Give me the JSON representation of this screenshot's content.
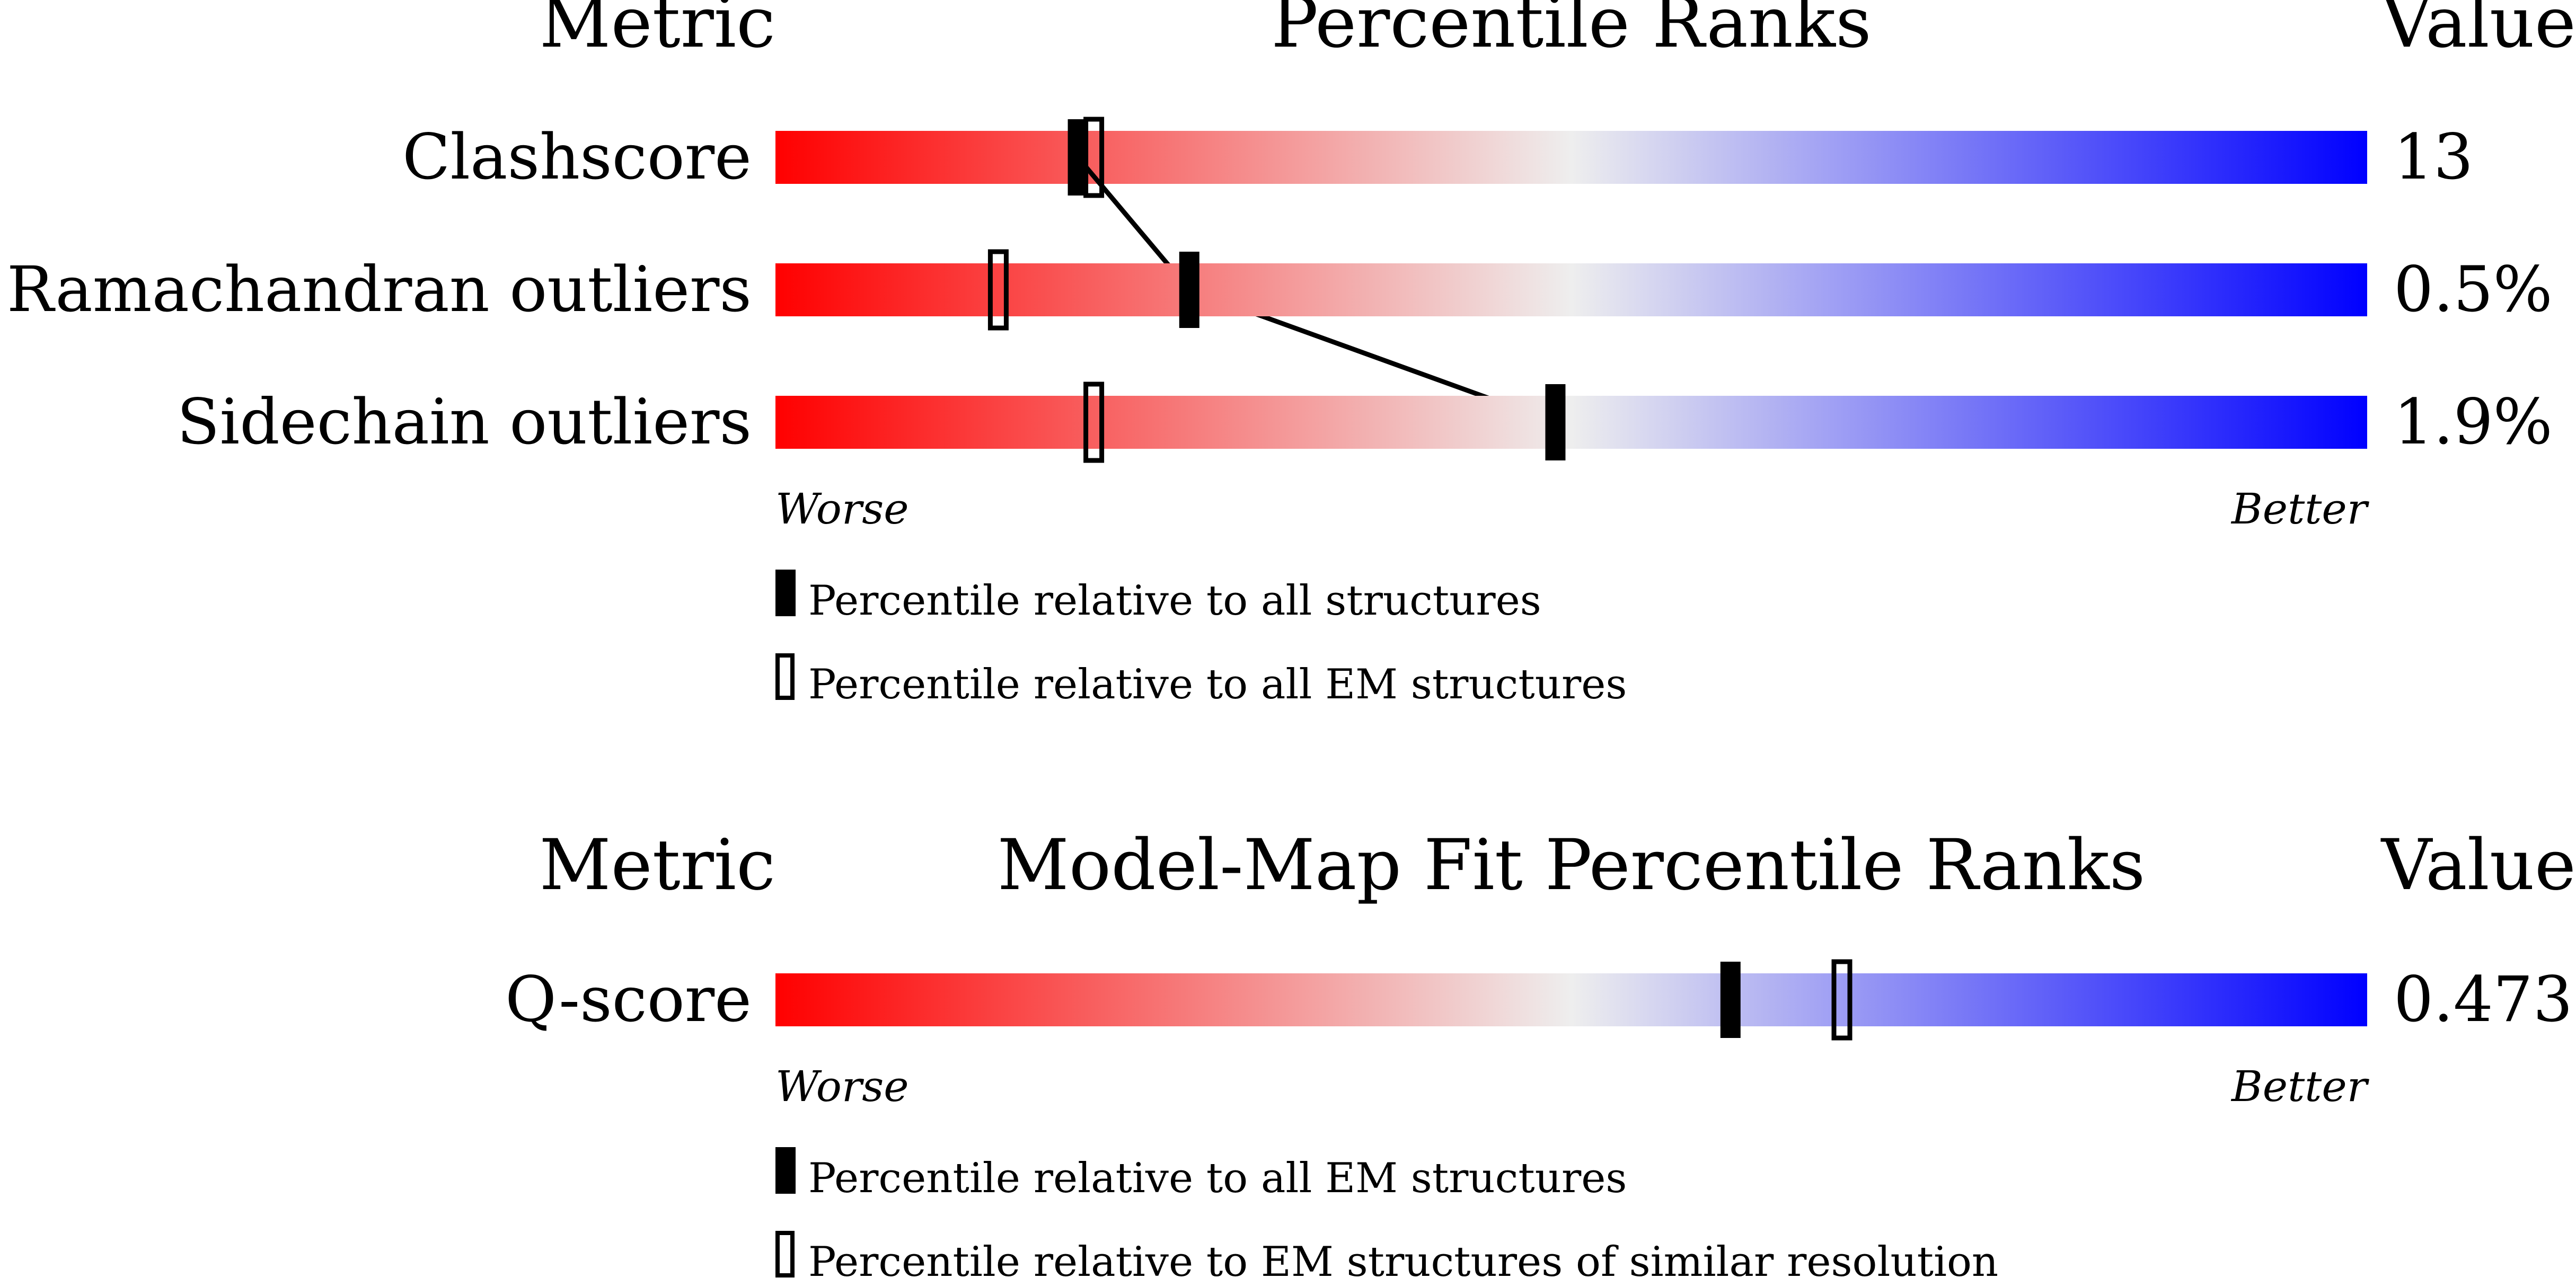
{
  "chart_data": [
    {
      "type": "percentile-ranks",
      "header": {
        "metric": "Metric",
        "title": "Percentile Ranks",
        "value": "Value"
      },
      "colors": {
        "worse": "#ff0000",
        "neutral": "#eeeeee",
        "better": "#0000ff",
        "marker": "#000000"
      },
      "xlim": [
        0,
        100
      ],
      "axis": {
        "worse": "Worse",
        "better": "Better"
      },
      "metrics": [
        {
          "label": "Clashscore",
          "value": "13",
          "percentile_all": 19,
          "percentile_em": 20
        },
        {
          "label": "Ramachandran outliers",
          "value": "0.5%",
          "percentile_all": 26,
          "percentile_em": 14
        },
        {
          "label": "Sidechain outliers",
          "value": "1.9%",
          "percentile_all": 49,
          "percentile_em": 20
        }
      ],
      "connector_line": true,
      "legend": {
        "filled": "Percentile relative to all structures",
        "open": "Percentile relative to all EM structures"
      }
    },
    {
      "type": "percentile-ranks",
      "header": {
        "metric": "Metric",
        "title": "Model-Map Fit Percentile Ranks",
        "value": "Value"
      },
      "colors": {
        "worse": "#ff0000",
        "neutral": "#eeeeee",
        "better": "#0000ff",
        "marker": "#000000"
      },
      "xlim": [
        0,
        100
      ],
      "axis": {
        "worse": "Worse",
        "better": "Better"
      },
      "metrics": [
        {
          "label": "Q-score",
          "value": "0.473",
          "percentile_all": 60,
          "percentile_em": 67
        }
      ],
      "connector_line": false,
      "legend": {
        "filled": "Percentile relative to all EM structures",
        "open": "Percentile relative to EM structures of similar resolution"
      }
    }
  ]
}
